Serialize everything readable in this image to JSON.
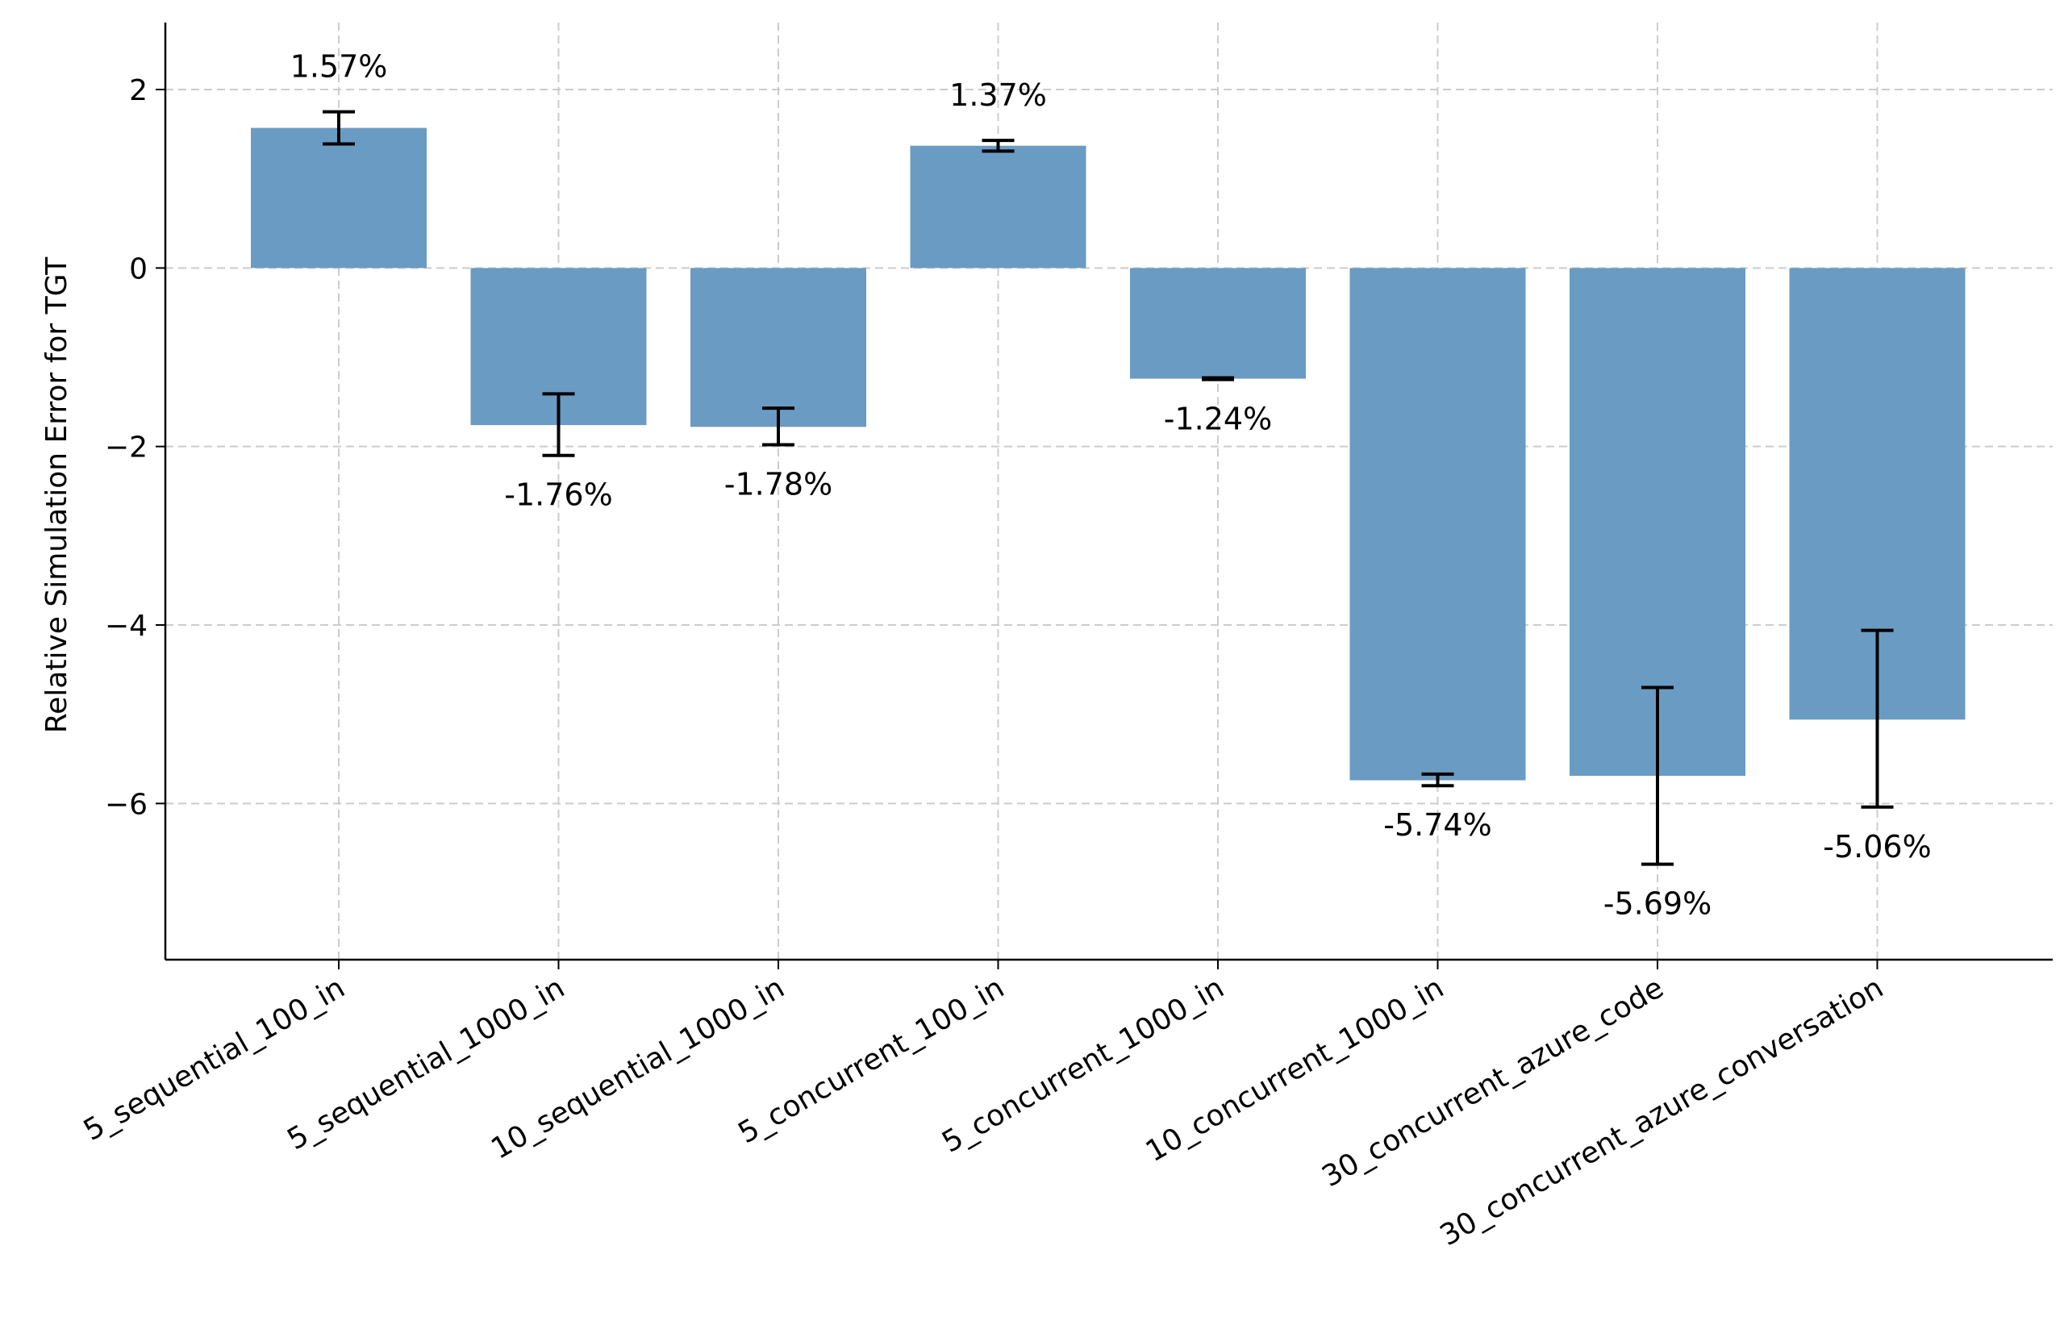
{
  "chart_data": {
    "type": "bar",
    "title": "",
    "xlabel": "",
    "ylabel": "Relative Simulation Error for TGT",
    "categories": [
      "5_sequential_100_in",
      "5_sequential_1000_in",
      "10_sequential_1000_in",
      "5_concurrent_100_in",
      "5_concurrent_1000_in",
      "10_concurrent_1000_in",
      "30_concurrent_azure_code",
      "30_concurrent_azure_conversation"
    ],
    "values": [
      1.57,
      -1.76,
      -1.78,
      1.37,
      -1.24,
      -5.74,
      -5.69,
      -5.06
    ],
    "error_low": [
      1.39,
      -2.1,
      -1.98,
      1.31,
      -1.25,
      -5.8,
      -6.68,
      -6.04
    ],
    "error_high": [
      1.75,
      -1.41,
      -1.57,
      1.43,
      -1.23,
      -5.67,
      -4.7,
      -4.06
    ],
    "value_labels": [
      "1.57%",
      "-1.76%",
      "-1.78%",
      "1.37%",
      "-1.24%",
      "-5.74%",
      "-5.69%",
      "-5.06%"
    ],
    "ylim": [
      -7.75,
      2.75
    ],
    "yticks": [
      2,
      0,
      -2,
      -4,
      -6
    ],
    "ytick_labels": [
      "2",
      "0",
      "−2",
      "−4",
      "−6"
    ],
    "grid": true,
    "legend": "none",
    "colors": {
      "bar": "#6a9bc3",
      "grid": "#cccccc",
      "axis": "#000000",
      "text": "#000000"
    }
  }
}
